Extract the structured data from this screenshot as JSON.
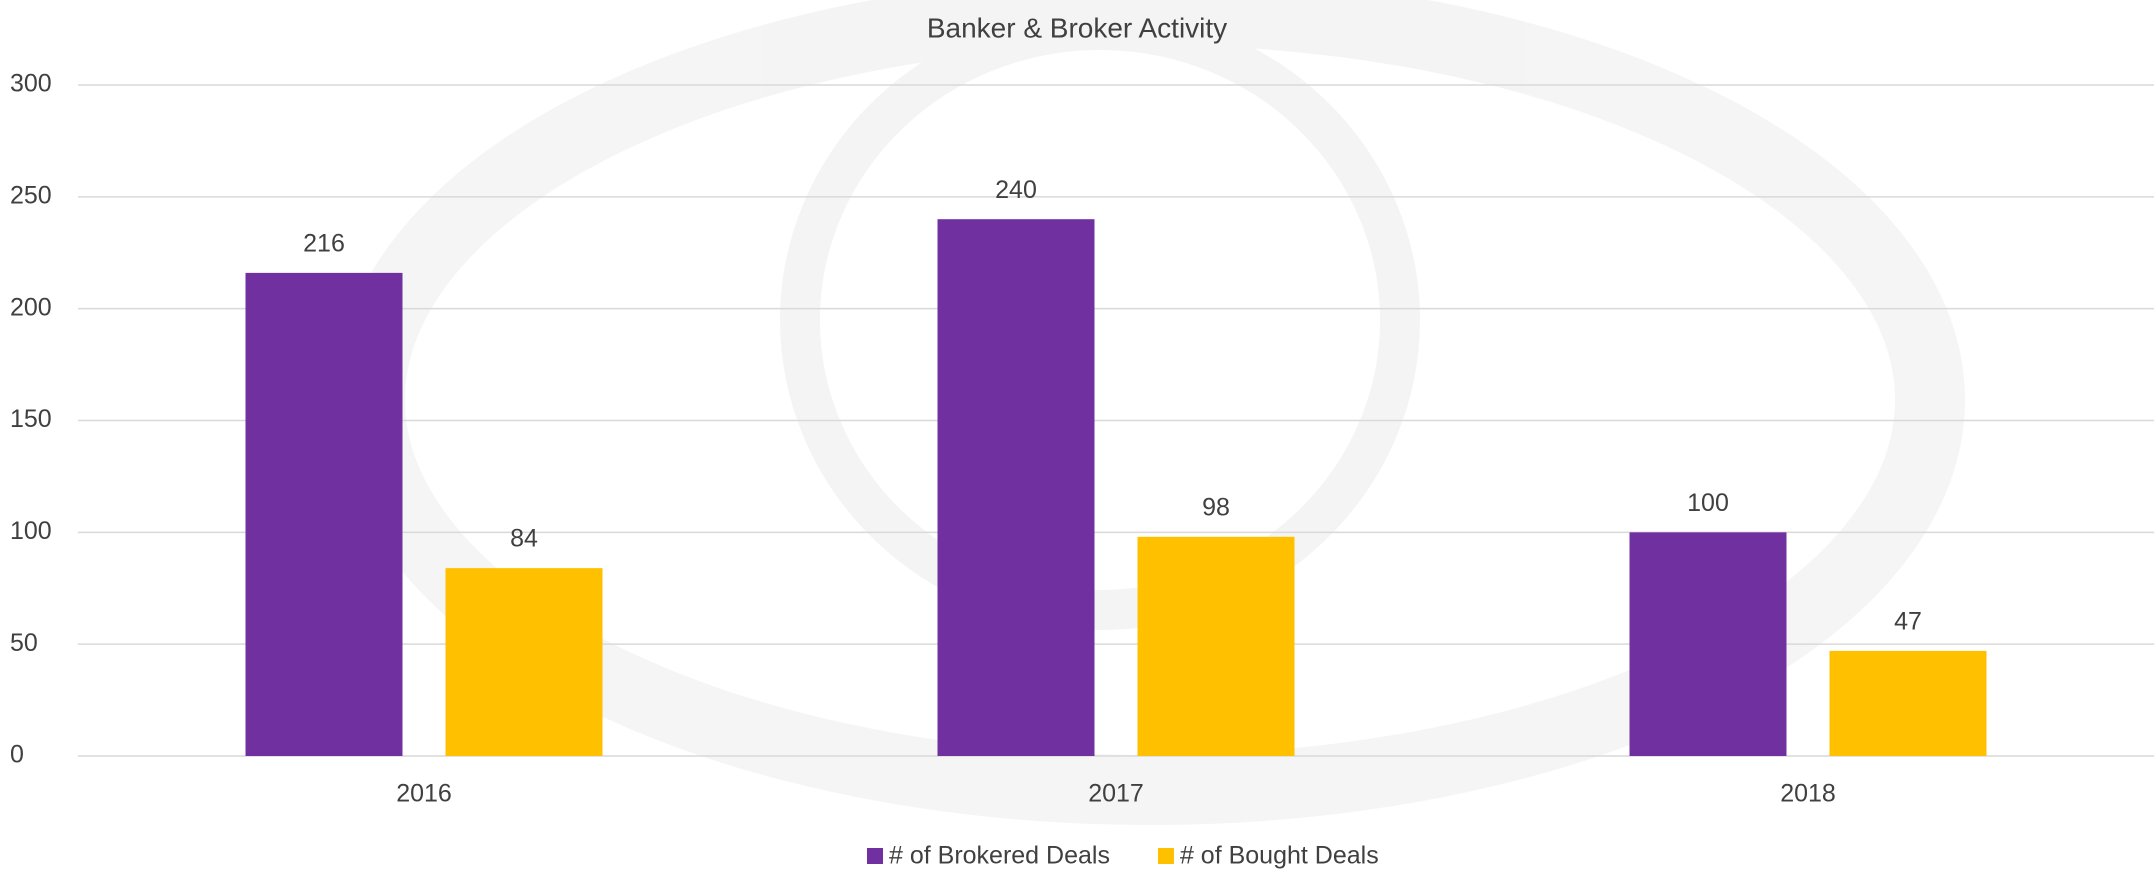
{
  "chart_data": {
    "type": "bar",
    "title": "Banker & Broker Activity",
    "categories": [
      "2016",
      "2017",
      "2018"
    ],
    "series": [
      {
        "name": "# of Brokered Deals",
        "color": "#7030a0",
        "values": [
          216,
          240,
          100
        ]
      },
      {
        "name": "# of Bought Deals",
        "color": "#ffc000",
        "values": [
          84,
          98,
          47
        ]
      }
    ],
    "ylim": [
      0,
      300
    ],
    "yticks": [
      0,
      50,
      100,
      150,
      200,
      250,
      300
    ],
    "grid": true,
    "legend": "bottom"
  }
}
